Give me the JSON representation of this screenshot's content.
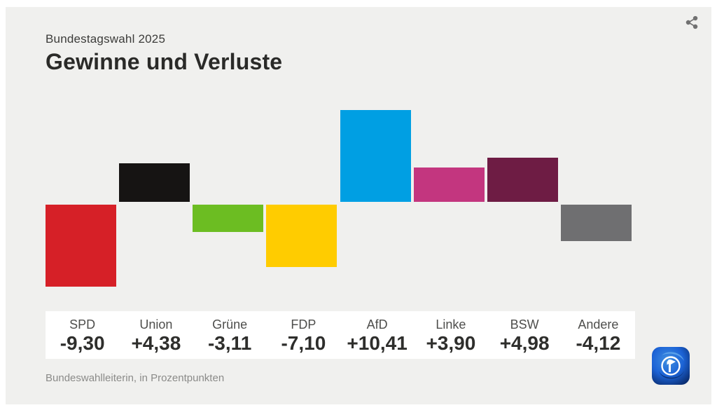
{
  "header": {
    "subtitle": "Bundestagswahl 2025",
    "title": "Gewinne und Verluste"
  },
  "footer": {
    "source": "Bundeswahlleiterin, in Prozentpunkten"
  },
  "icons": {
    "share": "share-icon",
    "logo": "ard-tagesschau-logo"
  },
  "colors": {
    "card_background": "#f0f0ee",
    "label_band_background": "#ffffff",
    "title_text": "#2a2a28",
    "subtitle_text": "#3c3c3a",
    "source_text": "#8b8b89",
    "share_icon": "#717171",
    "logo_blue": "#1c63d6"
  },
  "chart_data": {
    "type": "bar",
    "title": "Gewinne und Verluste",
    "subtitle": "Bundestagswahl 2025",
    "unit": "Prozentpunkte",
    "source": "Bundeswahlleiterin",
    "categories": [
      "SPD",
      "Union",
      "Grüne",
      "FDP",
      "AfD",
      "Linke",
      "BSW",
      "Andere"
    ],
    "values": [
      -9.3,
      4.38,
      -3.11,
      -7.1,
      10.41,
      3.9,
      4.98,
      -4.12
    ],
    "value_labels": [
      "-9,30",
      "+4,38",
      "-3,11",
      "-7,10",
      "+10,41",
      "+3,90",
      "+4,98",
      "-4,12"
    ],
    "bar_colors": [
      "#d62027",
      "#161413",
      "#6cbd22",
      "#ffcc00",
      "#009fe3",
      "#c3367f",
      "#6e1c44",
      "#6f6f71"
    ],
    "baseline": 0,
    "ylim": [
      -10,
      11
    ],
    "grid": false,
    "legend": false,
    "axis_labels_visible": false
  }
}
